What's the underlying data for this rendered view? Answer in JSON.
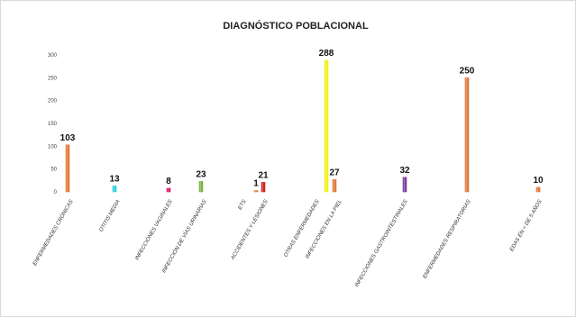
{
  "chart_data": {
    "type": "bar",
    "title": "DIAGNÓSTICO POBLACIONAL",
    "xlabel": "",
    "ylabel": "",
    "ylim": [
      0,
      300
    ],
    "yticks": [
      "0",
      "50",
      "100",
      "150",
      "200",
      "250",
      "300"
    ],
    "grid": false,
    "legend": "none",
    "categories": [
      {
        "label_lines": [
          "ENFERMEDADES CRÓNICAS"
        ]
      },
      {
        "label_lines": [
          "OTITIS MEDIA"
        ]
      },
      {
        "label_lines": [
          "INFECCIONES VAGINALES"
        ]
      },
      {
        "label_lines": [
          "INFECCIÓN DE VÍAS URINARIAS"
        ]
      },
      {
        "label_lines": [
          "ETS"
        ]
      },
      {
        "label_lines": [
          "ACCIDENTES Y LESIONES"
        ]
      },
      {
        "label_lines": [
          "OTRAS ENFERMEDADES"
        ]
      },
      {
        "label_lines": [
          "INFECCIONES EN LA PIEL"
        ]
      },
      {
        "label_lines": [
          "INFECCIONES GASTROINTESTINALES"
        ]
      },
      {
        "label_lines": [
          "ENFERMEDADES RESPIRATORIAS"
        ]
      },
      {
        "label_lines": [
          "EDAS EN < DE 5 AÑOS"
        ]
      }
    ],
    "values": [
      103,
      13,
      8,
      23,
      1,
      21,
      288,
      27,
      32,
      250,
      10
    ],
    "colors": [
      "#E07B39",
      "#29D3E0",
      "#E0196B",
      "#7CB342",
      "#E07B39",
      "#D42020",
      "#F2F21C",
      "#E07B39",
      "#7B3FA0",
      "#E07B39",
      "#E07B39"
    ]
  }
}
